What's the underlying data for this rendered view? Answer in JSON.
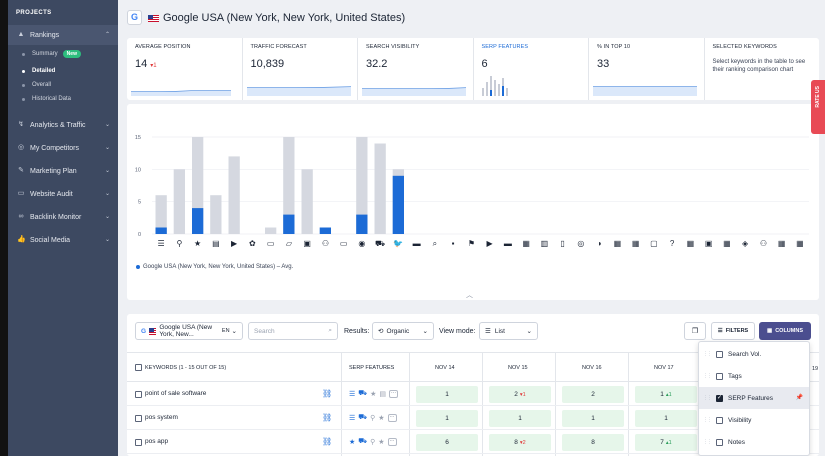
{
  "sidebar": {
    "heading": "PROJECTS",
    "items": [
      {
        "label": "Rankings",
        "icon": "rankings-icon"
      },
      {
        "label": "Analytics & Traffic",
        "icon": "analytics-icon"
      },
      {
        "label": "My Competitors",
        "icon": "competitors-icon"
      },
      {
        "label": "Marketing Plan",
        "icon": "marketing-plan-icon"
      },
      {
        "label": "Website Audit",
        "icon": "website-audit-icon"
      },
      {
        "label": "Backlink Monitor",
        "icon": "backlink-icon"
      },
      {
        "label": "Social Media",
        "icon": "social-media-icon"
      }
    ],
    "sub_items": [
      {
        "label": "Summary",
        "badge": "New"
      },
      {
        "label": "Detailed"
      },
      {
        "label": "Overall"
      },
      {
        "label": "Historical Data"
      }
    ]
  },
  "header": {
    "logo_letter": "G",
    "title": "Google USA (New York, New York, United States)"
  },
  "stats": [
    {
      "label": "AVERAGE POSITION",
      "value": "14",
      "delta": "1"
    },
    {
      "label": "TRAFFIC FORECAST",
      "value": "10,839"
    },
    {
      "label": "SEARCH VISIBILITY",
      "value": "32.2"
    },
    {
      "label": "SERP FEATURES",
      "value": "6"
    },
    {
      "label": "% IN TOP 10",
      "value": "33"
    },
    {
      "label": "SELECTED KEYWORDS",
      "description": "Select keywords in the table to see their ranking comparison chart"
    }
  ],
  "chart_data": {
    "type": "bar",
    "ylim": [
      0,
      15
    ],
    "yticks": [
      "0",
      "5",
      "10",
      "15"
    ],
    "series": [
      {
        "name": "Total",
        "color": "#d5d8e0",
        "values": [
          6,
          10,
          15,
          6,
          12,
          0,
          1,
          15,
          10,
          0,
          0,
          15,
          14,
          10,
          0,
          0,
          0,
          0,
          0,
          0,
          0,
          0,
          0,
          0,
          0,
          0,
          0,
          0,
          0,
          0,
          0,
          0,
          0,
          0,
          0,
          0
        ]
      },
      {
        "name": "Google USA (New York, New York, United States) - Avg.",
        "color": "#1c6bd6",
        "values": [
          1,
          0,
          4,
          0,
          0,
          0,
          0,
          3,
          0,
          1,
          0,
          3,
          0,
          9,
          0,
          0,
          0,
          0,
          0,
          0,
          0,
          0,
          0,
          0,
          0,
          0,
          0,
          0,
          0,
          0,
          0,
          0,
          0,
          0,
          0,
          0
        ]
      }
    ],
    "legend": "Google USA (New York, New York, United States) – Avg.",
    "grid": true
  },
  "table": {
    "search_engine": "Google USA (New York, New...",
    "lang": "EN",
    "search_placeholder": "Search",
    "results_label": "Results:",
    "results_value": "Organic",
    "view_mode_label": "View mode:",
    "view_mode_value": "List",
    "filters_label": "FILTERS",
    "columns_label": "COLUMNS",
    "headers": {
      "keywords": "KEYWORDS (1 - 15 OUT OF 15)",
      "serp": "SERP FEATURES",
      "dates": [
        "NOV 14",
        "NOV 15",
        "NOV 16",
        "NOV 17"
      ],
      "last": "19"
    },
    "rows": [
      {
        "keyword": "point of sale software",
        "cells": [
          {
            "v": "1"
          },
          {
            "v": "2",
            "d": "1"
          },
          {
            "v": "2"
          },
          {
            "v": "1",
            "d": "1"
          }
        ]
      },
      {
        "keyword": "pos system",
        "cells": [
          {
            "v": "1"
          },
          {
            "v": "1"
          },
          {
            "v": "1"
          },
          {
            "v": "1"
          }
        ]
      },
      {
        "keyword": "pos app",
        "cells": [
          {
            "v": "6"
          },
          {
            "v": "8",
            "d": "2"
          },
          {
            "v": "8"
          },
          {
            "v": "7",
            "d": "1"
          }
        ]
      }
    ]
  },
  "columns_menu": [
    {
      "label": "Search Vol.",
      "checked": false
    },
    {
      "label": "Tags",
      "checked": false
    },
    {
      "label": "SERP Features",
      "checked": true
    },
    {
      "label": "Visibility",
      "checked": false
    },
    {
      "label": "Notes",
      "checked": false
    }
  ],
  "rate_tab": "RATE US"
}
